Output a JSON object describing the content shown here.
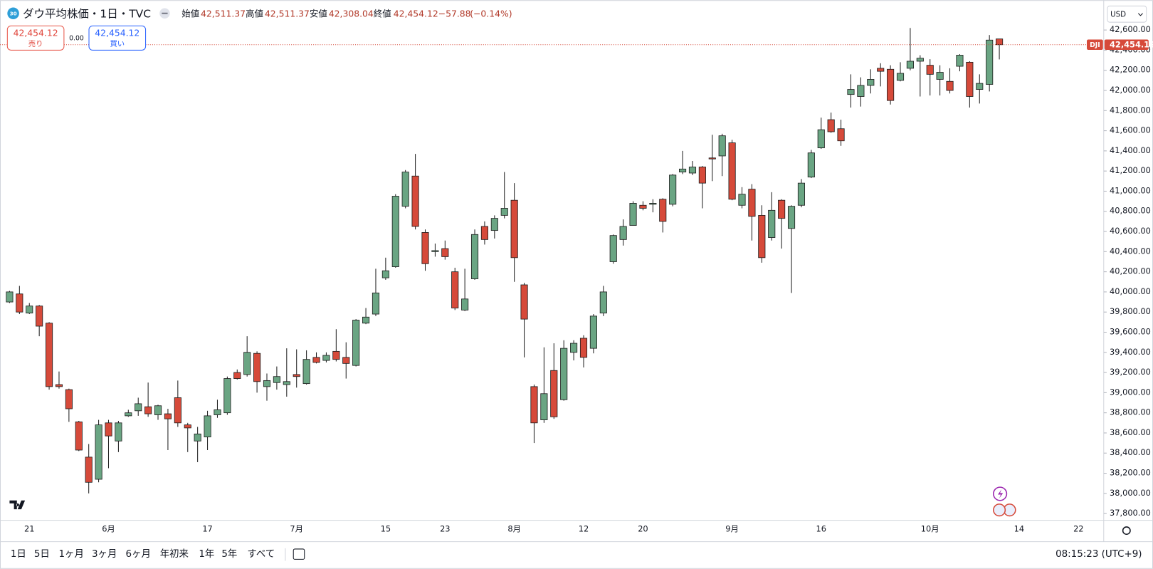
{
  "header": {
    "badge": "30",
    "title": "ダウ平均株価・1日・TVC",
    "open_label": "始値",
    "open": "42,511.37",
    "high_label": "高値",
    "high": "42,511.37",
    "low_label": "安値",
    "low": "42,308.04",
    "close_label": "終値",
    "close": "42,454.12",
    "change": "−57.88",
    "change_pct": "(−0.14%)"
  },
  "trade": {
    "sell_price": "42,454.12",
    "sell_label": "売り",
    "spread": "0.00",
    "buy_price": "42,454.12",
    "buy_label": "買い"
  },
  "currency": "USD",
  "toolbar": {
    "ranges": [
      "1日",
      "5日",
      "1ヶ月",
      "3ヶ月",
      "6ヶ月",
      "年初来",
      "1年",
      "5年",
      "すべて"
    ],
    "clock": "08:15:23 (UTC+9)"
  },
  "chart_data": {
    "type": "candlestick",
    "symbol": "DJI",
    "up_color": "#6aa583",
    "down_color": "#d64a3a",
    "grid": false,
    "last_price": {
      "value": 42454.12,
      "label": "42,454.12"
    },
    "categories": [
      null,
      null,
      "21",
      null,
      null,
      null,
      null,
      null,
      null,
      null,
      "6月",
      null,
      null,
      null,
      null,
      null,
      null,
      null,
      null,
      null,
      "17",
      null,
      null,
      null,
      null,
      null,
      null,
      null,
      null,
      "7月",
      null,
      null,
      null,
      null,
      null,
      null,
      null,
      null,
      "15",
      null,
      null,
      null,
      null,
      null,
      "23",
      null,
      null,
      null,
      null,
      null,
      null,
      "8月",
      null,
      null,
      null,
      null,
      null,
      null,
      "12",
      null,
      null,
      null,
      null,
      null,
      "20",
      null,
      null,
      null,
      null,
      null,
      null,
      null,
      null,
      "9月",
      null,
      null,
      null,
      null,
      null,
      null,
      null,
      null,
      "16",
      null,
      null,
      null,
      null,
      null,
      null,
      null,
      null,
      null,
      null,
      "10月",
      null,
      null,
      null,
      null,
      null,
      null,
      null,
      null,
      "14",
      null,
      null,
      null,
      null,
      null,
      "22"
    ],
    "open": [
      39900,
      39980,
      39790,
      39860,
      39690,
      39080,
      39030,
      38710,
      38360,
      38140,
      38700,
      38520,
      38770,
      38820,
      38860,
      38780,
      38790,
      38950,
      38680,
      38520,
      38560,
      38780,
      38800,
      39200,
      39180,
      39390,
      39060,
      39100,
      39080,
      39180,
      39090,
      39350,
      39320,
      39410,
      39350,
      39270,
      39690,
      39780,
      40140,
      40250,
      40850,
      41150,
      40590,
      40400,
      40430,
      40200,
      39820,
      40130,
      40650,
      40610,
      40760,
      40910,
      40070,
      39060,
      38730,
      39220,
      38930,
      39400,
      39540,
      39440,
      39790,
      40300,
      40520,
      40660,
      40860,
      40870,
      40920,
      40870,
      41190,
      41180,
      41240,
      41330,
      41350,
      41480,
      40860,
      41020,
      40760,
      40540,
      40910,
      40630,
      40860,
      41140,
      41430,
      41710,
      41620,
      41960,
      41940,
      42050,
      42220,
      42210,
      42100,
      42220,
      42290,
      42250,
      42110,
      42090,
      42240,
      42280,
      42010,
      42060,
      42511.37,
      null,
      null,
      null,
      null,
      null,
      null,
      null,
      null
    ],
    "high": [
      40010,
      40060,
      39890,
      39870,
      39700,
      39210,
      39040,
      38720,
      38490,
      38730,
      38730,
      38720,
      38830,
      38950,
      39100,
      38880,
      38840,
      39120,
      38700,
      38660,
      38820,
      38930,
      39160,
      39230,
      39560,
      39410,
      39190,
      39260,
      39440,
      39430,
      39420,
      39400,
      39400,
      39630,
      39500,
      39730,
      39840,
      40230,
      40340,
      40970,
      41210,
      41370,
      40620,
      40480,
      40510,
      40240,
      40230,
      40620,
      40700,
      40760,
      41190,
      41080,
      40090,
      39080,
      39450,
      39490,
      39520,
      39520,
      39570,
      39780,
      40060,
      40570,
      40720,
      40900,
      40900,
      40920,
      40930,
      41170,
      41400,
      41300,
      41250,
      41560,
      41570,
      41510,
      41040,
      41070,
      40860,
      40990,
      40920,
      40860,
      41120,
      41410,
      41730,
      41780,
      41710,
      42160,
      42130,
      42210,
      42270,
      42250,
      42280,
      42620,
      42350,
      42310,
      42250,
      42220,
      42360,
      42290,
      42160,
      42550,
      42511.37,
      null,
      null,
      null,
      null,
      null,
      null,
      null,
      null
    ],
    "low": [
      39890,
      39780,
      39780,
      39560,
      39030,
      39040,
      38710,
      38420,
      38000,
      38110,
      38250,
      38410,
      38760,
      38770,
      38760,
      38730,
      38430,
      38660,
      38410,
      38310,
      38430,
      38750,
      38780,
      39130,
      39160,
      39000,
      38920,
      39030,
      38960,
      39050,
      39080,
      39290,
      39300,
      39310,
      39140,
      39260,
      39680,
      39760,
      40120,
      40240,
      40830,
      40620,
      40210,
      40350,
      40320,
      39820,
      39810,
      40120,
      40470,
      40530,
      40730,
      40100,
      39350,
      38500,
      38700,
      38740,
      38920,
      39320,
      39250,
      39390,
      39760,
      40280,
      40460,
      40660,
      40810,
      40790,
      40590,
      40850,
      41170,
      41160,
      40830,
      41100,
      41150,
      40910,
      40830,
      40510,
      40290,
      40510,
      40430,
      39990,
      40840,
      41130,
      41420,
      41580,
      41450,
      41830,
      41840,
      41970,
      42040,
      41860,
      42090,
      42200,
      41940,
      41950,
      41950,
      41970,
      42190,
      41830,
      41870,
      41990,
      42308.04,
      null,
      null,
      null,
      null,
      null,
      null,
      null,
      null
    ],
    "close": [
      40000,
      39800,
      39860,
      39660,
      39060,
      39060,
      38840,
      38430,
      38110,
      38680,
      38570,
      38700,
      38800,
      38890,
      38790,
      38870,
      38740,
      38700,
      38650,
      38590,
      38770,
      38830,
      39140,
      39140,
      39400,
      39110,
      39120,
      39160,
      39110,
      39160,
      39330,
      39300,
      39370,
      39330,
      39290,
      39720,
      39750,
      39990,
      40210,
      40950,
      41190,
      40650,
      40280,
      40410,
      40350,
      39840,
      39930,
      40570,
      40520,
      40730,
      40830,
      40340,
      39730,
      38700,
      38990,
      38760,
      39440,
      39490,
      39350,
      39760,
      40000,
      40560,
      40650,
      40880,
      40830,
      40880,
      40700,
      41160,
      41220,
      41240,
      41080,
      41320,
      41550,
      40920,
      40970,
      40750,
      40340,
      40810,
      40730,
      40850,
      41080,
      41380,
      41610,
      41590,
      41500,
      42010,
      42050,
      42110,
      42190,
      41900,
      42170,
      42290,
      42320,
      42160,
      42180,
      42000,
      42350,
      41940,
      42070,
      42500,
      42454.12,
      null,
      null,
      null,
      null,
      null,
      null,
      null,
      null
    ],
    "ylim": [
      37740,
      42860
    ],
    "yticks": [
      {
        "value": 37800,
        "label": "37,800.00"
      },
      {
        "value": 38000,
        "label": "38,000.00"
      },
      {
        "value": 38200,
        "label": "38,200.00"
      },
      {
        "value": 38400,
        "label": "38,400.00"
      },
      {
        "value": 38600,
        "label": "38,600.00"
      },
      {
        "value": 38800,
        "label": "38,800.00"
      },
      {
        "value": 39000,
        "label": "39,000.00"
      },
      {
        "value": 39200,
        "label": "39,200.00"
      },
      {
        "value": 39400,
        "label": "39,400.00"
      },
      {
        "value": 39600,
        "label": "39,600.00"
      },
      {
        "value": 39800,
        "label": "39,800.00"
      },
      {
        "value": 40000,
        "label": "40,000.00"
      },
      {
        "value": 40200,
        "label": "40,200.00"
      },
      {
        "value": 40400,
        "label": "40,400.00"
      },
      {
        "value": 40600,
        "label": "40,600.00"
      },
      {
        "value": 40800,
        "label": "40,800.00"
      },
      {
        "value": 41000,
        "label": "41,000.00"
      },
      {
        "value": 41200,
        "label": "41,200.00"
      },
      {
        "value": 41400,
        "label": "41,400.00"
      },
      {
        "value": 41600,
        "label": "41,600.00"
      },
      {
        "value": 41800,
        "label": "41,800.00"
      },
      {
        "value": 42000,
        "label": "42,000.00"
      },
      {
        "value": 42200,
        "label": "42,200.00"
      },
      {
        "value": 42400,
        "label": "42,400.00"
      },
      {
        "value": 42600,
        "label": "42,600.00"
      }
    ]
  }
}
